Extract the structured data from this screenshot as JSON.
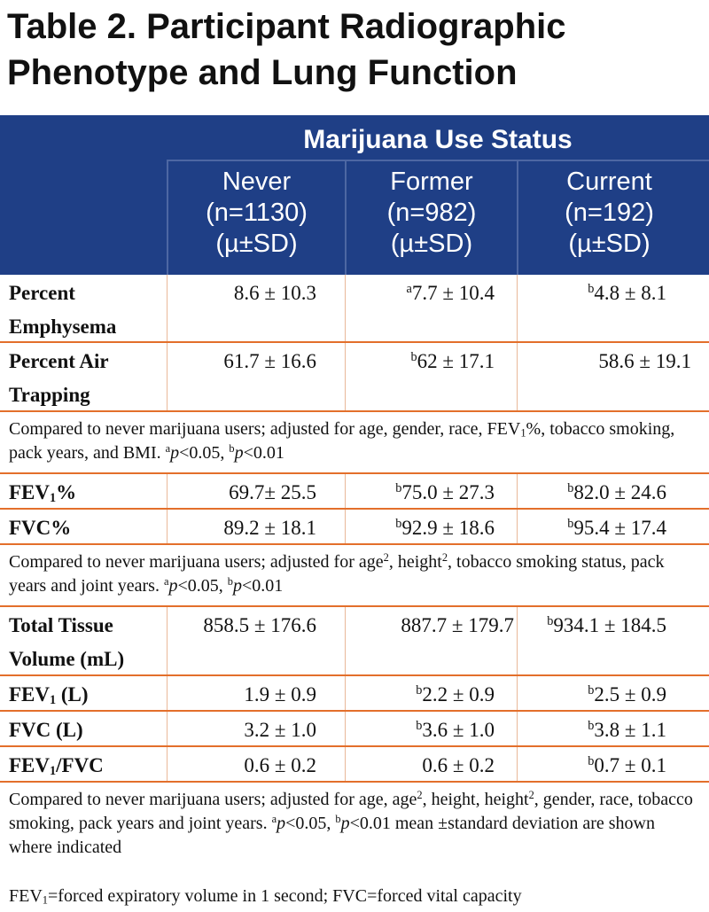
{
  "title": {
    "line1": "Table 2. Participant Radiographic",
    "line2": "Phenotype and Lung Function"
  },
  "header": {
    "group": "Marijuana Use Status",
    "columns": [
      {
        "name": "Never",
        "n": "(n=1130)",
        "stat": "(µ±SD)"
      },
      {
        "name": "Former",
        "n": "(n=982)",
        "stat": "(µ±SD)"
      },
      {
        "name": "Current",
        "n": "(n=192)",
        "stat": "(µ±SD)"
      }
    ]
  },
  "rows": {
    "emphysema": {
      "label": "Percent Emphysema",
      "never": "8.6 ± 10.3",
      "former_sup": "a",
      "former": "7.7 ± 10.4",
      "current_sup": "b",
      "current": "4.8 ± 8.1"
    },
    "air_trapping": {
      "label": "Percent Air Trapping",
      "never": "61.7 ± 16.6",
      "former_sup": "b",
      "former": "62 ± 17.1",
      "current": "58.6 ± 19.1"
    },
    "fev1_pct": {
      "label_a": "FEV",
      "label_sub": "1",
      "label_b": "%",
      "never": "69.7± 25.5",
      "former_sup": "b",
      "former": "75.0 ± 27.3",
      "current_sup": "b",
      "current": "82.0 ± 24.6"
    },
    "fvc_pct": {
      "label": "FVC%",
      "never": "89.2 ± 18.1",
      "former_sup": "b",
      "former": "92.9 ± 18.6",
      "current_sup": "b",
      "current": "95.4 ± 17.4"
    },
    "tissue": {
      "label": "Total Tissue Volume (mL)",
      "never": "858.5 ± 176.6",
      "former": "887.7 ± 179.7",
      "current_sup": "b",
      "current": "934.1 ± 184.5"
    },
    "fev1_l": {
      "label_a": "FEV",
      "label_sub": "1",
      "label_b": " (L)",
      "never": "1.9 ± 0.9",
      "former_sup": "b",
      "former": "2.2 ± 0.9",
      "current_sup": "b",
      "current": "2.5 ± 0.9"
    },
    "fvc_l": {
      "label": "FVC (L)",
      "never": "3.2 ± 1.0",
      "former_sup": "b",
      "former": "3.6 ± 1.0",
      "current_sup": "b",
      "current": "3.8 ± 1.1"
    },
    "ratio": {
      "label_a": "FEV",
      "label_sub": "1",
      "label_b": "/FVC",
      "never": "0.6 ± 0.2",
      "former": "0.6 ± 0.2",
      "current_sup": "b",
      "current": "0.7 ± 0.1"
    }
  },
  "notes": {
    "n1_a": "Compared to never marijuana users; adjusted for age, gender, race, FEV",
    "n1_sub": "1",
    "n1_b": "%, tobacco smoking, pack years, and BMI. ",
    "n2_a": "Compared to never marijuana users; adjusted for age",
    "n2_b": ", height",
    "n2_c": ", tobacco smoking status, pack years and joint years. ",
    "n3_a": "Compared to never marijuana users; adjusted for age, age",
    "n3_b": ", height, height",
    "n3_c": ", gender, race, tobacco smoking, pack years and joint years. ",
    "n3_d": " mean ±standard deviation are shown where indicated",
    "sq": "2",
    "sup_a": "a",
    "sup_b": "b",
    "p_italic": "p",
    "p05": "<0.05, ",
    "p01": "<0.01",
    "p01_n2": "<0.01"
  },
  "footer": {
    "a": "FEV",
    "sub": "1",
    "b": "=forced expiratory volume in 1 second; FVC=forced vital capacity"
  }
}
